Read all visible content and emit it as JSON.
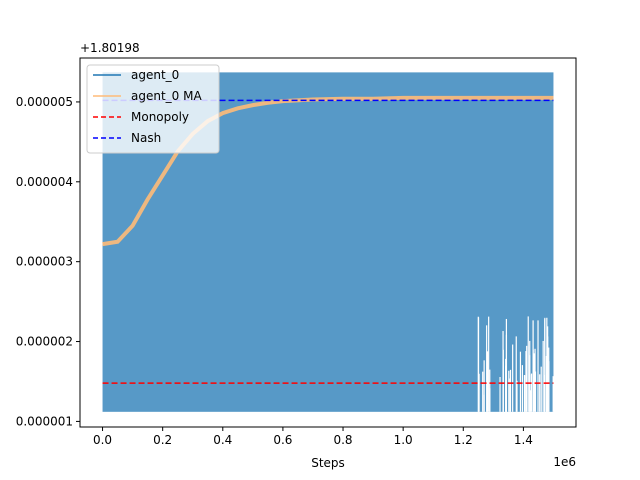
{
  "chart_data": {
    "type": "line",
    "xlabel": "Steps",
    "ylabel": "",
    "x_offset_text": "1e6",
    "y_offset_text": "+1.80198",
    "xlim": [
      -0.075,
      1.575
    ],
    "ylim": [
      9.3e-07,
      5.55e-06
    ],
    "x_ticks": [
      {
        "value": 0.0,
        "label": "0.0"
      },
      {
        "value": 0.2,
        "label": "0.2"
      },
      {
        "value": 0.4,
        "label": "0.4"
      },
      {
        "value": 0.6,
        "label": "0.6"
      },
      {
        "value": 0.8,
        "label": "0.8"
      },
      {
        "value": 1.0,
        "label": "1.0"
      },
      {
        "value": 1.2,
        "label": "1.2"
      },
      {
        "value": 1.4,
        "label": "1.4"
      }
    ],
    "y_ticks": [
      {
        "value": 1e-06,
        "label": "0.000001"
      },
      {
        "value": 2e-06,
        "label": "0.000002"
      },
      {
        "value": 3e-06,
        "label": "0.000003"
      },
      {
        "value": 4e-06,
        "label": "0.000004"
      },
      {
        "value": 5e-06,
        "label": "0.000005"
      }
    ],
    "legend_position": "top-left",
    "grid": false,
    "series": [
      {
        "name": "agent_0",
        "style": "band",
        "color": "#1f77b4",
        "x_range": [
          0.0,
          1.5
        ],
        "y_low": 1.12e-06,
        "y_high": 5.37e-06
      },
      {
        "name": "agent_0 MA",
        "style": "line",
        "color": "#ffbb78",
        "x": [
          0.0,
          0.05,
          0.1,
          0.15,
          0.2,
          0.25,
          0.3,
          0.35,
          0.4,
          0.45,
          0.5,
          0.55,
          0.6,
          0.7,
          0.8,
          0.9,
          1.0,
          1.1,
          1.2,
          1.3,
          1.4,
          1.5
        ],
        "y": [
          3.22e-06,
          3.25e-06,
          3.45e-06,
          3.78e-06,
          4.08e-06,
          4.38e-06,
          4.6e-06,
          4.76e-06,
          4.86e-06,
          4.92e-06,
          4.96e-06,
          4.99e-06,
          5.01e-06,
          5.03e-06,
          5.04e-06,
          5.04e-06,
          5.05e-06,
          5.05e-06,
          5.05e-06,
          5.05e-06,
          5.05e-06,
          5.05e-06
        ]
      },
      {
        "name": "Monopoly",
        "style": "dashed",
        "color": "#ff0000",
        "x": [
          0.0,
          1.5
        ],
        "y": [
          1.48e-06,
          1.48e-06
        ]
      },
      {
        "name": "Nash",
        "style": "dashed",
        "color": "#0000ff",
        "x": [
          0.0,
          1.5
        ],
        "y": [
          5.02e-06,
          5.02e-06
        ]
      }
    ]
  }
}
